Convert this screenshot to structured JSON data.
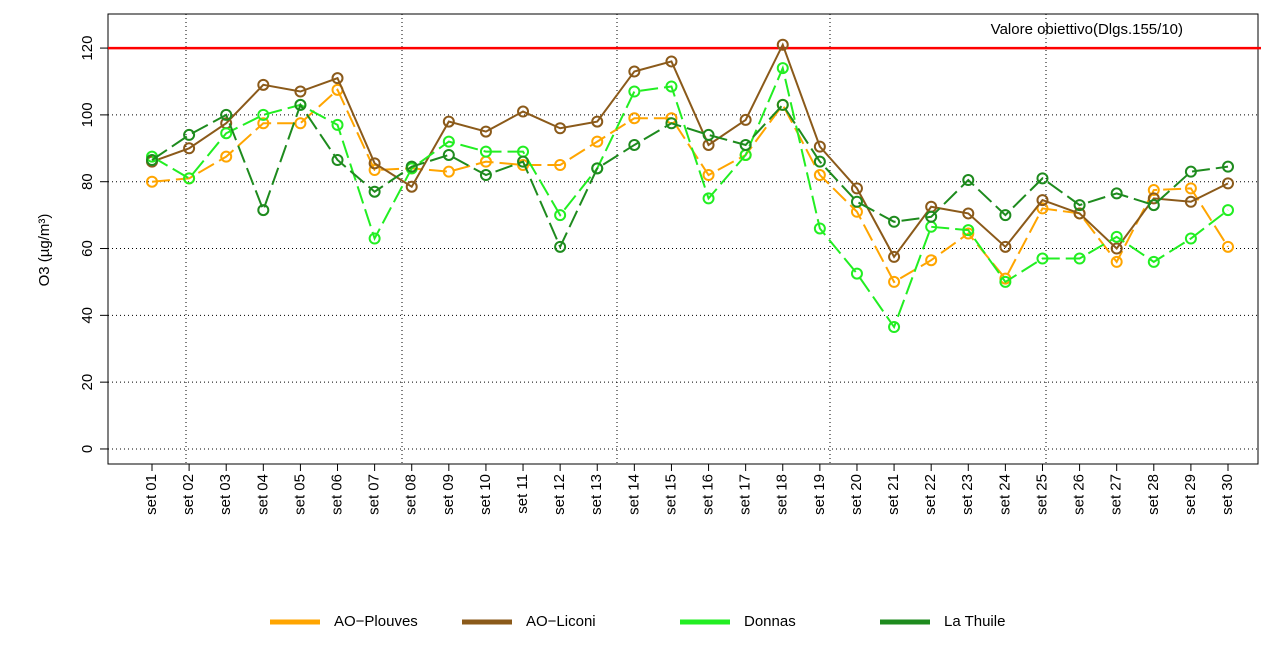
{
  "chart_data": {
    "type": "line",
    "y_label": "O3 (µg/m³)",
    "categories": [
      "set 01",
      "set 02",
      "set 03",
      "set 04",
      "set 05",
      "set 06",
      "set 07",
      "set 08",
      "set 09",
      "set 10",
      "set 11",
      "set 12",
      "set 13",
      "set 14",
      "set 15",
      "set 16",
      "set 17",
      "set 18",
      "set 19",
      "set 20",
      "set 21",
      "set 22",
      "set 23",
      "set 24",
      "set 25",
      "set 26",
      "set 27",
      "set 28",
      "set 29",
      "set 30"
    ],
    "series": [
      {
        "name": "AO−Plouves",
        "color": "#ffa500",
        "linestyle": "dashed",
        "values": [
          80,
          81,
          87.5,
          97.5,
          97.5,
          107.5,
          83.5,
          84,
          83,
          86,
          85,
          85,
          92,
          99,
          99,
          82,
          88,
          103,
          82,
          71,
          50,
          56.5,
          64.5,
          51,
          72,
          70.5,
          56,
          77.5,
          78,
          60.5
        ]
      },
      {
        "name": "AO−Liconi",
        "color": "#8b5a1a",
        "linestyle": "solid",
        "values": [
          86,
          90,
          97.5,
          109,
          107,
          111,
          85.5,
          78.5,
          98,
          95,
          101,
          96,
          98,
          113,
          116,
          91,
          98.5,
          121,
          90.5,
          78,
          57.5,
          72.5,
          70.5,
          60.5,
          74.5,
          70.5,
          60,
          75,
          74,
          79.5
        ]
      },
      {
        "name": "Donnas",
        "color": "#22ee22",
        "linestyle": "dashed",
        "values": [
          87.5,
          81,
          94.5,
          100,
          103,
          97,
          63,
          84,
          92,
          89,
          89,
          70,
          84,
          107,
          108.5,
          75,
          88,
          114,
          66,
          52.5,
          36.5,
          66.5,
          65.5,
          50,
          57,
          57,
          63.5,
          56,
          63,
          71.5
        ]
      },
      {
        "name": "La Thuile",
        "color": "#1e8b1e",
        "linestyle": "dashed",
        "values": [
          86.5,
          94,
          100,
          71.5,
          103,
          86.5,
          77,
          84.5,
          88,
          82,
          86,
          60.5,
          84,
          91,
          97.5,
          94,
          91,
          103,
          86,
          74,
          68,
          69.5,
          80.5,
          70,
          81,
          73,
          76.5,
          73,
          83,
          84.5
        ]
      }
    ],
    "hline": {
      "value": 120,
      "label": "Valore obiettivo(Dlgs.155/10)",
      "color": "#ff0000"
    },
    "ylim": [
      -4.5,
      130.2
    ],
    "yticks": [
      0,
      20,
      40,
      60,
      80,
      100,
      120
    ],
    "grid": true
  }
}
